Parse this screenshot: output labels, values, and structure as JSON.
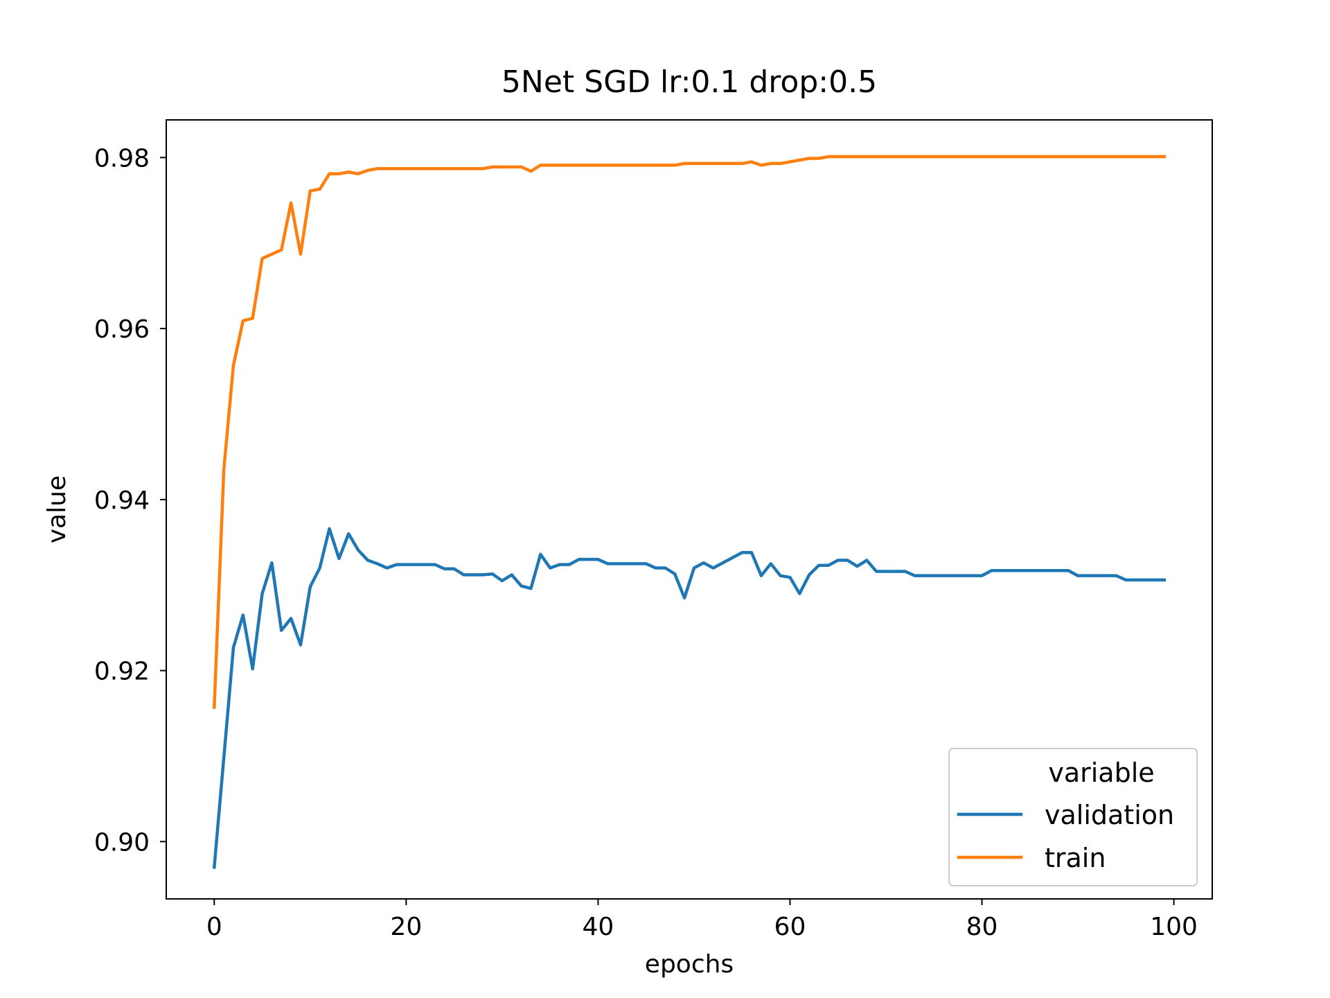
{
  "chart_data": {
    "type": "line",
    "title": "5Net SGD lr:0.1 drop:0.5",
    "xlabel": "epochs",
    "ylabel": "value",
    "xlim": [
      -5,
      104
    ],
    "ylim": [
      0.8933,
      0.9844
    ],
    "xticks": [
      0,
      20,
      40,
      60,
      80,
      100
    ],
    "yticks": [
      0.9,
      0.92,
      0.94,
      0.96,
      0.98
    ],
    "xtick_labels": [
      "0",
      "20",
      "40",
      "60",
      "80",
      "100"
    ],
    "ytick_labels": [
      "0.90",
      "0.92",
      "0.94",
      "0.96",
      "0.98"
    ],
    "grid": false,
    "legend": {
      "title": "variable",
      "placement": "lower-right"
    },
    "x": [
      0,
      1,
      2,
      3,
      4,
      5,
      6,
      7,
      8,
      9,
      10,
      11,
      12,
      13,
      14,
      15,
      16,
      17,
      18,
      19,
      20,
      21,
      22,
      23,
      24,
      25,
      26,
      27,
      28,
      29,
      30,
      31,
      32,
      33,
      34,
      35,
      36,
      37,
      38,
      39,
      40,
      41,
      42,
      43,
      44,
      45,
      46,
      47,
      48,
      49,
      50,
      51,
      52,
      53,
      54,
      55,
      56,
      57,
      58,
      59,
      60,
      61,
      62,
      63,
      64,
      65,
      66,
      67,
      68,
      69,
      70,
      71,
      72,
      73,
      74,
      75,
      76,
      77,
      78,
      79,
      80,
      81,
      82,
      83,
      84,
      85,
      86,
      87,
      88,
      89,
      90,
      91,
      92,
      93,
      94,
      95,
      96,
      97,
      98,
      99
    ],
    "series": [
      {
        "name": "validation",
        "color": "#1f77b4",
        "values": [
          0.897,
          0.9098,
          0.9227,
          0.9265,
          0.9202,
          0.929,
          0.9326,
          0.9247,
          0.9261,
          0.923,
          0.9298,
          0.932,
          0.9366,
          0.9331,
          0.936,
          0.9341,
          0.9329,
          0.9325,
          0.932,
          0.9324,
          0.9324,
          0.9324,
          0.9324,
          0.9324,
          0.9319,
          0.9319,
          0.9312,
          0.9312,
          0.9312,
          0.9313,
          0.9305,
          0.9312,
          0.9299,
          0.9296,
          0.9336,
          0.932,
          0.9324,
          0.9324,
          0.933,
          0.933,
          0.933,
          0.9325,
          0.9325,
          0.9325,
          0.9325,
          0.9325,
          0.932,
          0.932,
          0.9313,
          0.9285,
          0.932,
          0.9326,
          0.932,
          0.9326,
          0.9332,
          0.9338,
          0.9338,
          0.9311,
          0.9325,
          0.9311,
          0.9309,
          0.929,
          0.9312,
          0.9323,
          0.9323,
          0.9329,
          0.9329,
          0.9322,
          0.9329,
          0.9316,
          0.9316,
          0.9316,
          0.9316,
          0.9311,
          0.9311,
          0.9311,
          0.9311,
          0.9311,
          0.9311,
          0.9311,
          0.9311,
          0.9317,
          0.9317,
          0.9317,
          0.9317,
          0.9317,
          0.9317,
          0.9317,
          0.9317,
          0.9317,
          0.9311,
          0.9311,
          0.9311,
          0.9311,
          0.9311,
          0.9306,
          0.9306,
          0.9306,
          0.9306,
          0.9306
        ]
      },
      {
        "name": "train",
        "color": "#ff7f0e",
        "values": [
          0.9157,
          0.9435,
          0.9557,
          0.9609,
          0.9612,
          0.9682,
          0.9687,
          0.9692,
          0.9747,
          0.9687,
          0.9761,
          0.9763,
          0.9781,
          0.9781,
          0.9783,
          0.9781,
          0.9785,
          0.9787,
          0.9787,
          0.9787,
          0.9787,
          0.9787,
          0.9787,
          0.9787,
          0.9787,
          0.9787,
          0.9787,
          0.9787,
          0.9787,
          0.9789,
          0.9789,
          0.9789,
          0.9789,
          0.9784,
          0.9791,
          0.9791,
          0.9791,
          0.9791,
          0.9791,
          0.9791,
          0.9791,
          0.9791,
          0.9791,
          0.9791,
          0.9791,
          0.9791,
          0.9791,
          0.9791,
          0.9791,
          0.9793,
          0.9793,
          0.9793,
          0.9793,
          0.9793,
          0.9793,
          0.9793,
          0.9795,
          0.9791,
          0.9793,
          0.9793,
          0.9795,
          0.9797,
          0.9799,
          0.9799,
          0.9801,
          0.9801,
          0.9801,
          0.9801,
          0.9801,
          0.9801,
          0.9801,
          0.9801,
          0.9801,
          0.9801,
          0.9801,
          0.9801,
          0.9801,
          0.9801,
          0.9801,
          0.9801,
          0.9801,
          0.9801,
          0.9801,
          0.9801,
          0.9801,
          0.9801,
          0.9801,
          0.9801,
          0.9801,
          0.9801,
          0.9801,
          0.9801,
          0.9801,
          0.9801,
          0.9801,
          0.9801,
          0.9801,
          0.9801,
          0.9801,
          0.9801
        ]
      }
    ]
  }
}
